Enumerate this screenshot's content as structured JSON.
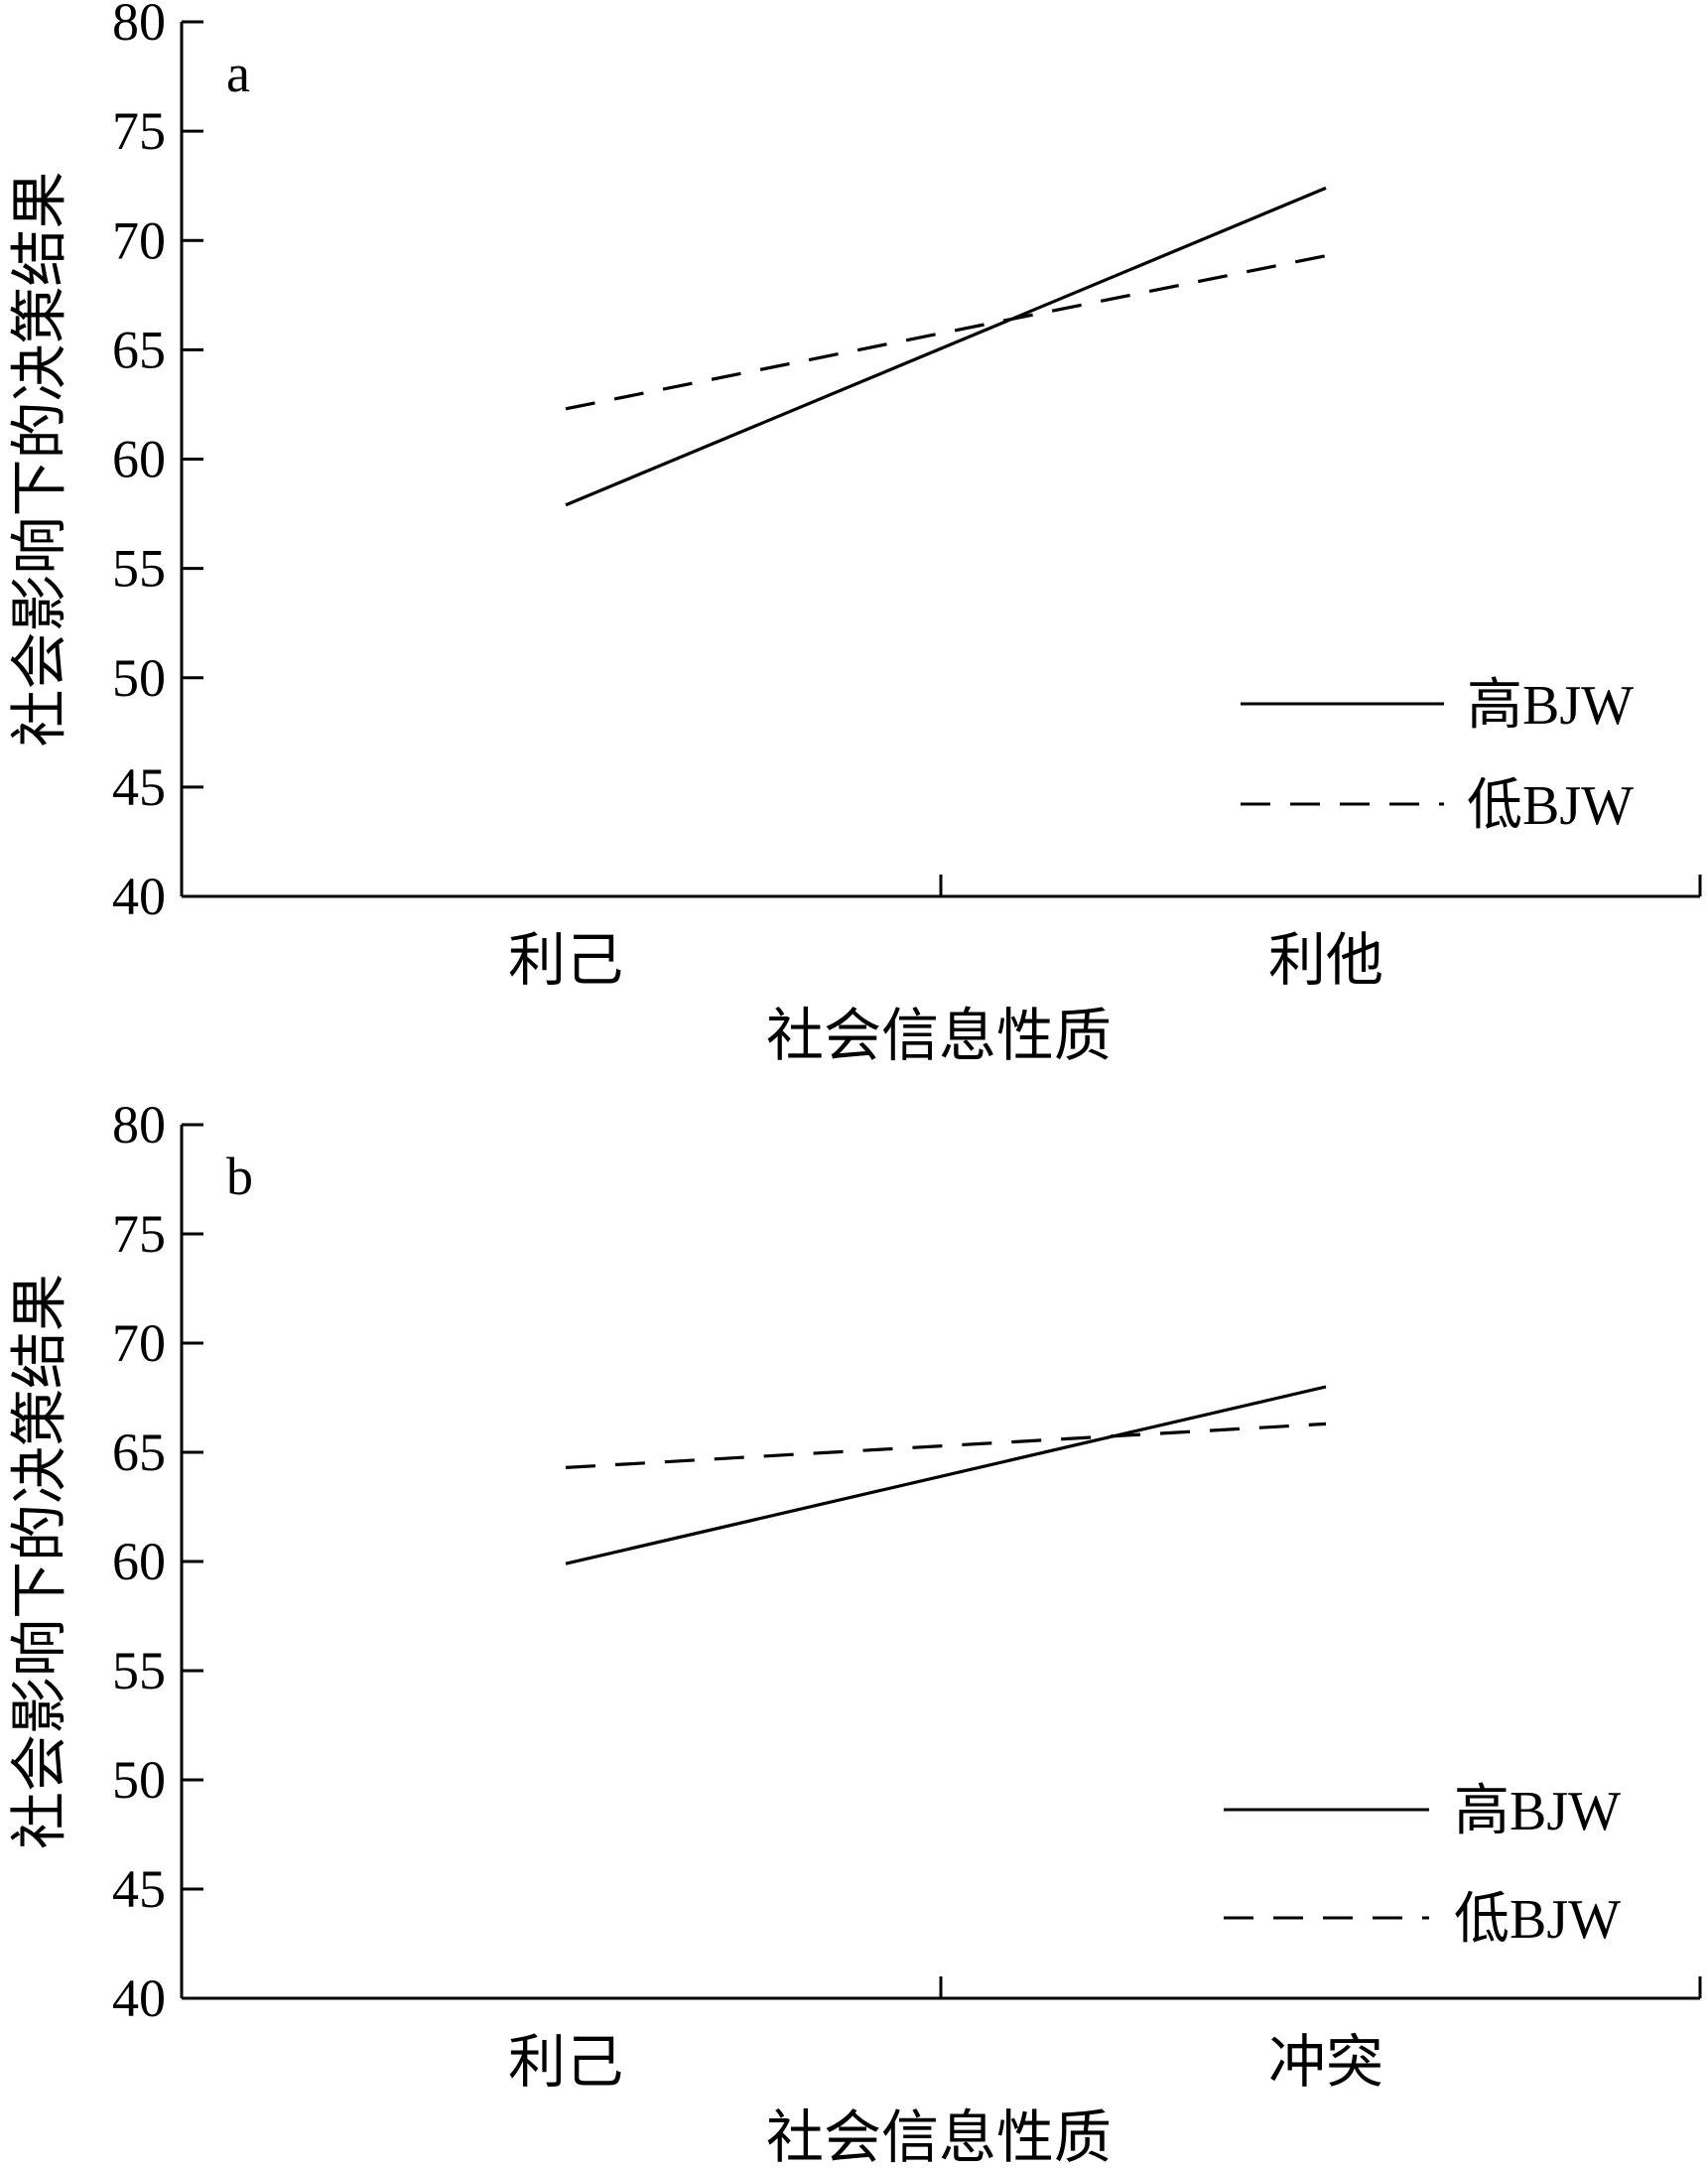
{
  "chart_data": [
    {
      "type": "line",
      "panel_label": "a",
      "categories": [
        "利己",
        "利他"
      ],
      "series": [
        {
          "name": "高BJW",
          "values": [
            57.9,
            72.4
          ],
          "style": "solid"
        },
        {
          "name": "低BJW",
          "values": [
            62.3,
            69.3
          ],
          "style": "dashed"
        }
      ],
      "ylabel": "社会影响下的决策结果",
      "xlabel": "社会信息性质",
      "ylim": [
        40,
        80
      ],
      "yticks": [
        40,
        45,
        50,
        55,
        60,
        65,
        70,
        75,
        80
      ],
      "grid": false,
      "legend_position": "bottom-right"
    },
    {
      "type": "line",
      "panel_label": "b",
      "categories": [
        "利己",
        "冲突"
      ],
      "series": [
        {
          "name": "高BJW",
          "values": [
            59.9,
            68.0
          ],
          "style": "solid"
        },
        {
          "name": "低BJW",
          "values": [
            64.3,
            66.3
          ],
          "style": "dashed"
        }
      ],
      "ylabel": "社会影响下的决策结果",
      "xlabel": "社会信息性质",
      "ylim": [
        40,
        80
      ],
      "yticks": [
        40,
        45,
        50,
        55,
        60,
        65,
        70,
        75,
        80
      ],
      "grid": false,
      "legend_position": "bottom-right"
    }
  ]
}
